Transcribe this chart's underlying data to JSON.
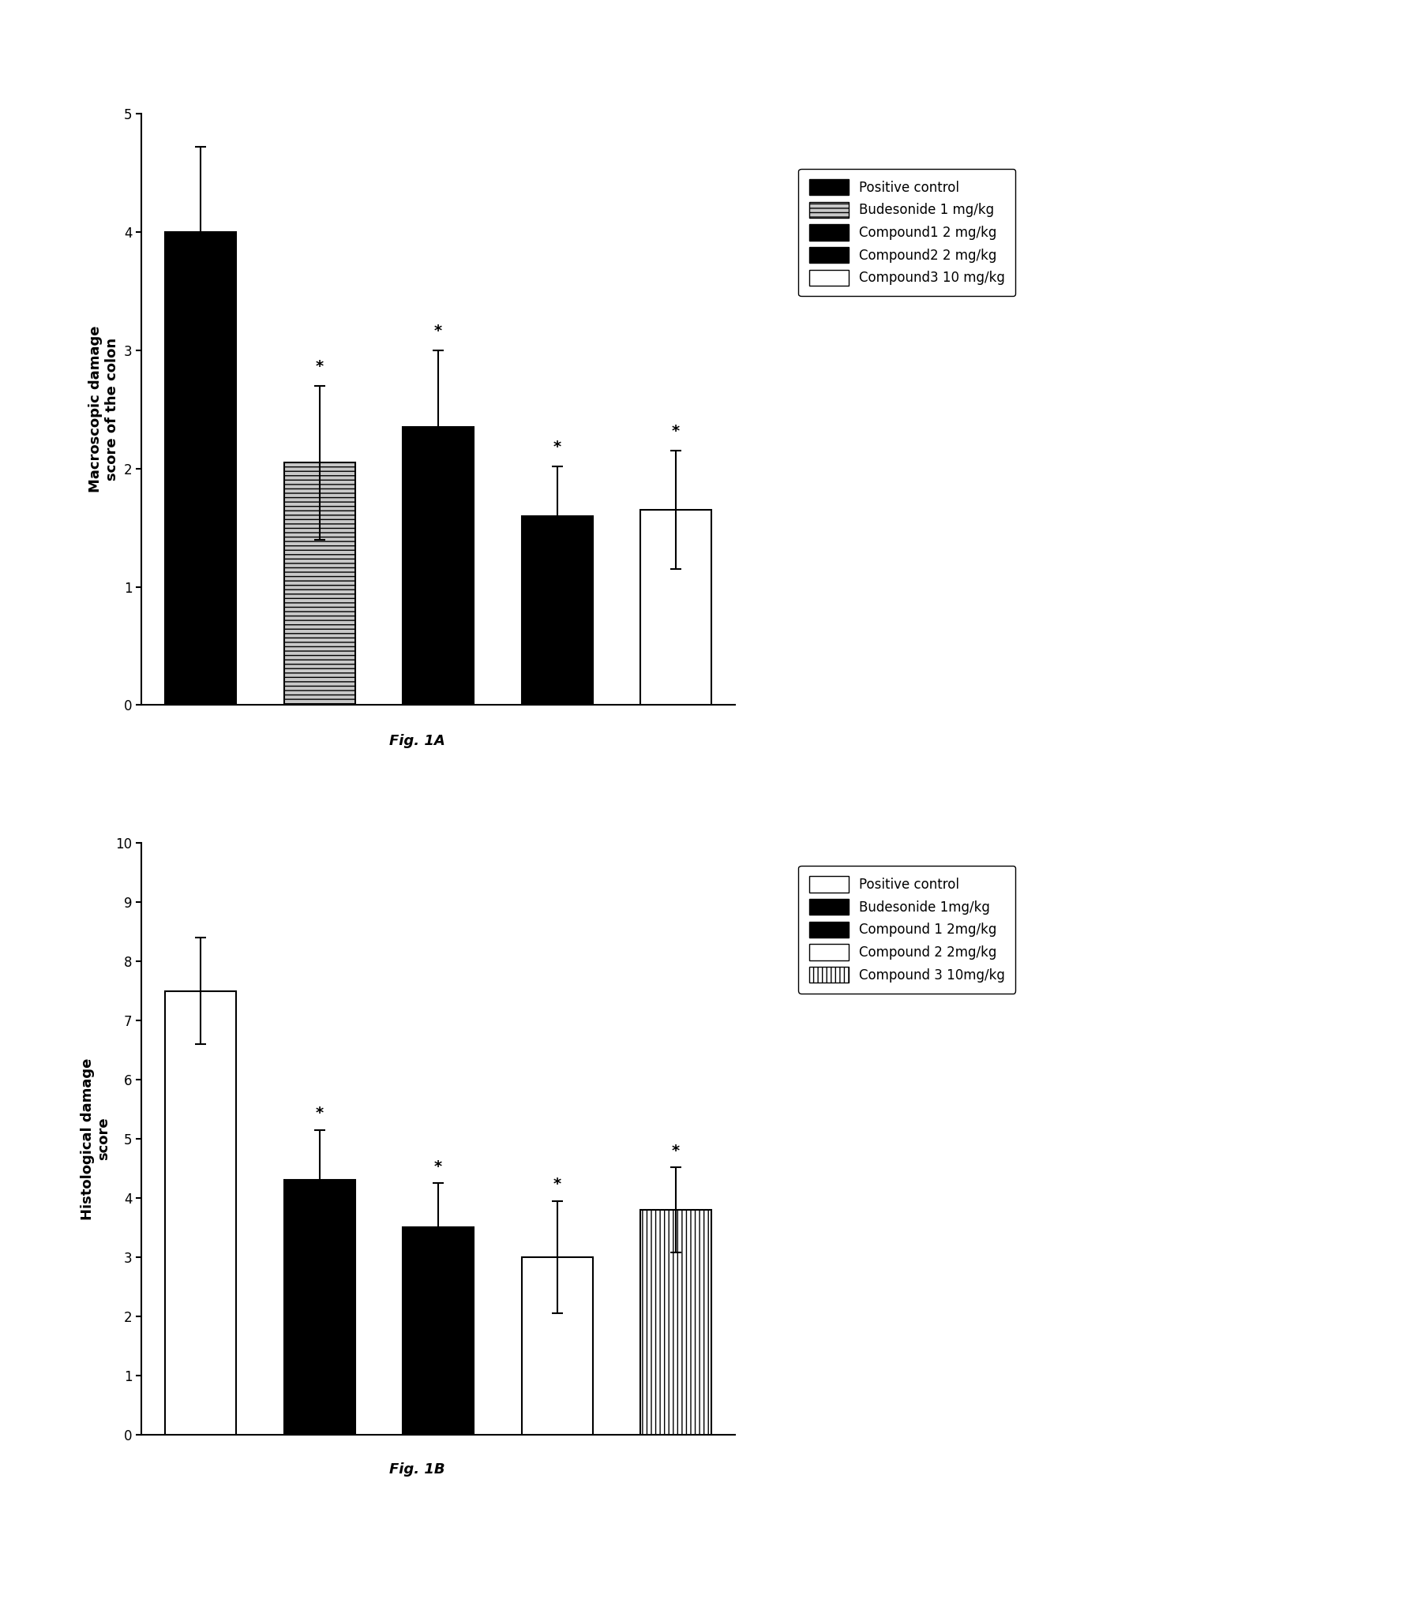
{
  "fig1a": {
    "ylabel": "Macroscopic damage\nscore of the colon",
    "figlabel": "Fig. 1A",
    "values": [
      4.0,
      2.05,
      2.35,
      1.6,
      1.65
    ],
    "errors": [
      0.72,
      0.65,
      0.65,
      0.42,
      0.5
    ],
    "significance": [
      false,
      true,
      true,
      true,
      true
    ],
    "ylim": [
      0,
      5
    ],
    "yticks": [
      0,
      1,
      2,
      3,
      4,
      5
    ],
    "bar_styles": [
      "solid_black",
      "gray_hatch",
      "solid_black",
      "solid_black",
      "horizontal_lines"
    ],
    "legend_labels": [
      "Positive control",
      "Budesonide 1 mg/kg",
      "Compound1 2 mg/kg",
      "Compound2 2 mg/kg",
      "Compound3 10 mg/kg"
    ]
  },
  "fig1b": {
    "ylabel": "Histological damage\nscore",
    "figlabel": "Fig. 1B",
    "values": [
      7.5,
      4.3,
      3.5,
      3.0,
      3.8
    ],
    "errors": [
      0.9,
      0.85,
      0.75,
      0.95,
      0.72
    ],
    "significance": [
      false,
      true,
      true,
      true,
      true
    ],
    "ylim": [
      0,
      10
    ],
    "yticks": [
      0,
      1,
      2,
      3,
      4,
      5,
      6,
      7,
      8,
      9,
      10
    ],
    "bar_styles": [
      "horizontal_lines",
      "solid_black",
      "solid_black",
      "horizontal_lines_wide",
      "vertical_lines"
    ],
    "legend_labels": [
      "Positive control",
      "Budesonide 1mg/kg",
      "Compound 1 2mg/kg",
      "Compound 2 2mg/kg",
      "Compound 3 10mg/kg"
    ]
  },
  "background_color": "#ffffff",
  "bar_width": 0.6,
  "bar_positions": [
    1,
    2,
    3,
    4,
    5
  ]
}
